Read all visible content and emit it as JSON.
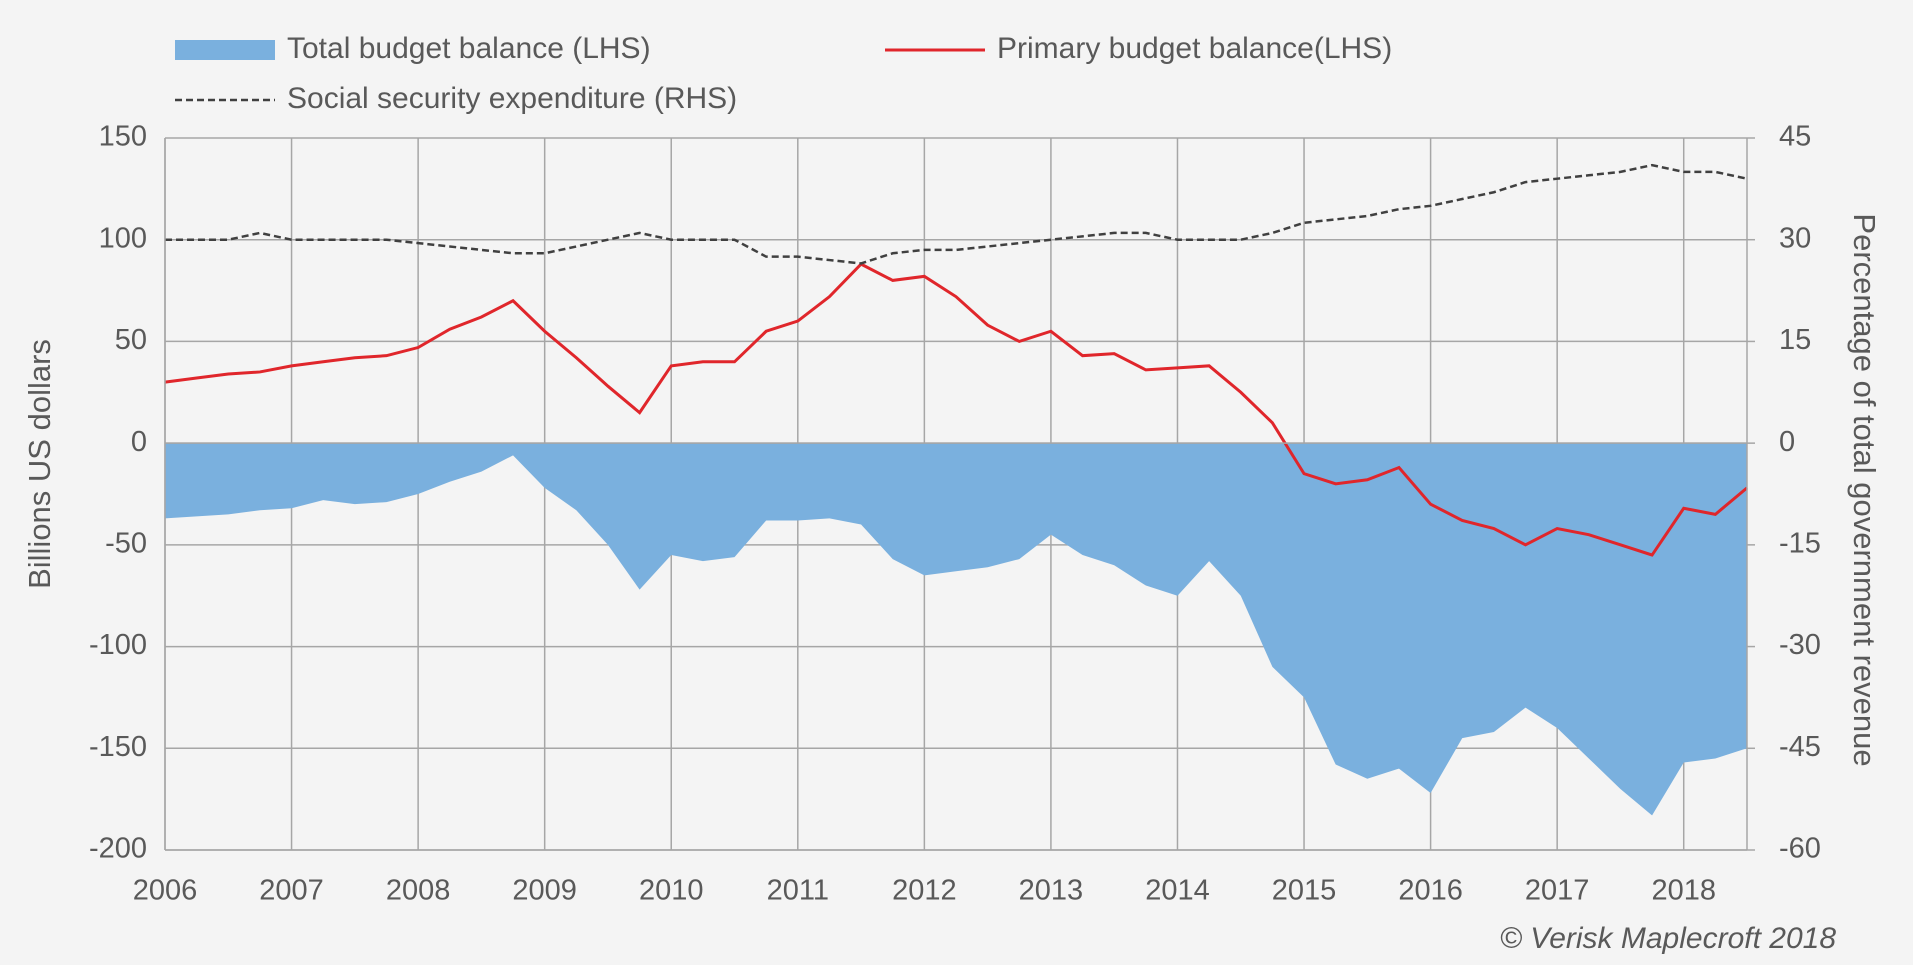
{
  "chart_data": {
    "type": "line",
    "ylabel": "Billions US dollars",
    "y2label": "Percentage of total government revenue",
    "annotation": "© Verisk Maplecroft 2018",
    "x": [
      2006,
      2006.25,
      2006.5,
      2006.75,
      2007,
      2007.25,
      2007.5,
      2007.75,
      2008,
      2008.25,
      2008.5,
      2008.75,
      2009,
      2009.25,
      2009.5,
      2009.75,
      2010,
      2010.25,
      2010.5,
      2010.75,
      2011,
      2011.25,
      2011.5,
      2011.75,
      2012,
      2012.25,
      2012.5,
      2012.75,
      2013,
      2013.25,
      2013.5,
      2013.75,
      2014,
      2014.25,
      2014.5,
      2014.75,
      2015,
      2015.25,
      2015.5,
      2015.75,
      2016,
      2016.25,
      2016.5,
      2016.75,
      2017,
      2017.25,
      2017.5,
      2017.75,
      2018,
      2018.25,
      2018.5
    ],
    "series": [
      {
        "name": "Total budget balance (LHS)",
        "type": "area",
        "color": "#7ab0de",
        "values": [
          -37,
          -36,
          -35,
          -33,
          -32,
          -28,
          -30,
          -29,
          -25,
          -19,
          -14,
          -6,
          -22,
          -33,
          -50,
          -72,
          -55,
          -58,
          -56,
          -38,
          -38,
          -37,
          -40,
          -57,
          -65,
          -63,
          -61,
          -57,
          -45,
          -55,
          -60,
          -70,
          -75,
          -58,
          -75,
          -110,
          -125,
          -158,
          -165,
          -160,
          -172,
          -145,
          -142,
          -130,
          -140,
          -155,
          -170,
          -183,
          -157,
          -155,
          -150
        ]
      },
      {
        "name": "Primary budget balance(LHS)",
        "type": "line",
        "color": "#e0262b",
        "values": [
          30,
          32,
          34,
          35,
          38,
          40,
          42,
          43,
          47,
          56,
          62,
          70,
          55,
          42,
          28,
          15,
          38,
          40,
          40,
          55,
          60,
          72,
          88,
          80,
          82,
          72,
          58,
          50,
          55,
          43,
          44,
          36,
          37,
          38,
          25,
          10,
          -15,
          -20,
          -18,
          -12,
          -30,
          -38,
          -42,
          -50,
          -42,
          -45,
          -50,
          -55,
          -32,
          -35,
          -22
        ]
      },
      {
        "name": "Social security expenditure (RHS)",
        "type": "line",
        "dashed": true,
        "axis": "y2",
        "color": "#404040",
        "values": [
          30,
          30,
          30,
          31,
          30,
          30,
          30,
          30,
          29.5,
          29,
          28.5,
          28,
          28,
          29,
          30,
          31,
          30,
          30,
          30,
          27.5,
          27.5,
          27,
          26.5,
          28,
          28.5,
          28.5,
          29,
          29.5,
          30,
          30.5,
          31,
          31,
          30,
          30,
          30,
          31,
          32.5,
          33,
          33.5,
          34.5,
          35,
          36,
          37,
          38.5,
          39,
          39.5,
          40,
          41,
          40,
          40,
          39
        ]
      }
    ],
    "xlim": [
      2006,
      2018.5
    ],
    "xticks": [
      2006,
      2007,
      2008,
      2009,
      2010,
      2011,
      2012,
      2013,
      2014,
      2015,
      2016,
      2017,
      2018
    ],
    "ylim": [
      -200,
      150
    ],
    "yticks": [
      150,
      100,
      50,
      0,
      -50,
      -100,
      -150,
      -200
    ],
    "y2lim": [
      -60,
      45
    ],
    "y2ticks": [
      45,
      30,
      15,
      0,
      -15,
      -30,
      -45,
      -60
    ],
    "grid": true,
    "legend": "top"
  }
}
